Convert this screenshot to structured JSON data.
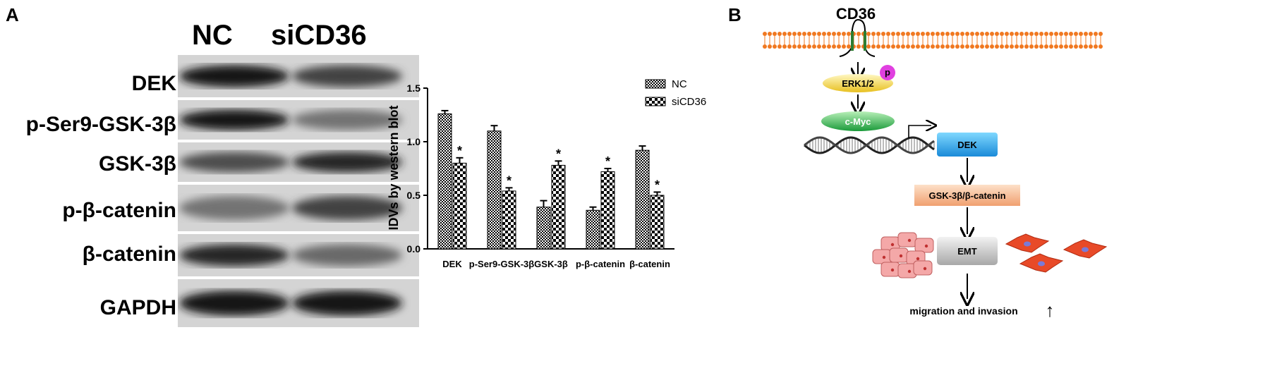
{
  "panels": {
    "a": "A",
    "b": "B"
  },
  "blot": {
    "columns": [
      "NC",
      "siCD36"
    ],
    "rows": [
      {
        "label": "DEK",
        "nc": 0.95,
        "si": 0.7
      },
      {
        "label": "p-Ser9-GSK-3β",
        "nc": 0.95,
        "si": 0.45
      },
      {
        "label": "GSK-3β",
        "nc": 0.65,
        "si": 0.85
      },
      {
        "label": "p-β-catenin",
        "nc": 0.45,
        "si": 0.7
      },
      {
        "label": "β-catenin",
        "nc": 0.85,
        "si": 0.5
      },
      {
        "label": "GAPDH",
        "nc": 0.95,
        "si": 0.95
      }
    ]
  },
  "chart_data": {
    "type": "bar",
    "categories": [
      "DEK",
      "p-Ser9-GSK-3β",
      "GSK-3β",
      "p-β-catenin",
      "β-catenin"
    ],
    "series": [
      {
        "name": "NC",
        "values": [
          1.26,
          1.1,
          0.39,
          0.36,
          0.92
        ],
        "errors": [
          0.03,
          0.05,
          0.06,
          0.03,
          0.04
        ],
        "significant": [
          false,
          false,
          false,
          false,
          false
        ]
      },
      {
        "name": "siCD36",
        "values": [
          0.8,
          0.54,
          0.78,
          0.72,
          0.5
        ],
        "errors": [
          0.05,
          0.03,
          0.04,
          0.03,
          0.03
        ],
        "significant": [
          true,
          true,
          true,
          true,
          true
        ]
      }
    ],
    "ylabel": "IDVs by western blot",
    "yticks": [
      "0.0",
      "0.5",
      "1.0",
      "1.5"
    ],
    "ylim": [
      0,
      1.5
    ],
    "significance_mark": "*",
    "legend_placement": "top-right"
  },
  "diagram": {
    "cd36": "CD36",
    "erk": "ERK1/2",
    "phospho": "p",
    "cmyc": "c-Myc",
    "dek": "DEK",
    "gsk": "GSK-3β/β-catenin",
    "emt": "EMT",
    "outcome": "migration and invasion",
    "up_arrow": "↑"
  }
}
